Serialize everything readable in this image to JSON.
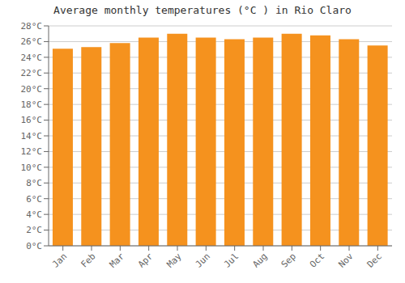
{
  "chart_data": {
    "type": "bar",
    "title": "Average monthly temperatures (°C ) in Rio Claro",
    "categories": [
      "Jan",
      "Feb",
      "Mar",
      "Apr",
      "May",
      "Jun",
      "Jul",
      "Aug",
      "Sep",
      "Oct",
      "Nov",
      "Dec"
    ],
    "values": [
      25.1,
      25.3,
      25.8,
      26.5,
      27.0,
      26.5,
      26.3,
      26.5,
      27.0,
      26.8,
      26.3,
      25.5
    ],
    "color": "#F5921E",
    "ylim": [
      0,
      28
    ],
    "yticks": [
      {
        "value": 0,
        "label": "0°C"
      },
      {
        "value": 2,
        "label": "2°C"
      },
      {
        "value": 4,
        "label": "4°C"
      },
      {
        "value": 6,
        "label": "6°C"
      },
      {
        "value": 8,
        "label": "8°C"
      },
      {
        "value": 10,
        "label": "10°C"
      },
      {
        "value": 12,
        "label": "12°C"
      },
      {
        "value": 14,
        "label": "14°C"
      },
      {
        "value": 16,
        "label": "16°C"
      },
      {
        "value": 18,
        "label": "18°C"
      },
      {
        "value": 20,
        "label": "20°C"
      },
      {
        "value": 22,
        "label": "22°C"
      },
      {
        "value": 24,
        "label": "24°C"
      },
      {
        "value": 26,
        "label": "26°C"
      },
      {
        "value": 28,
        "label": "28°C"
      }
    ],
    "grid": true
  }
}
